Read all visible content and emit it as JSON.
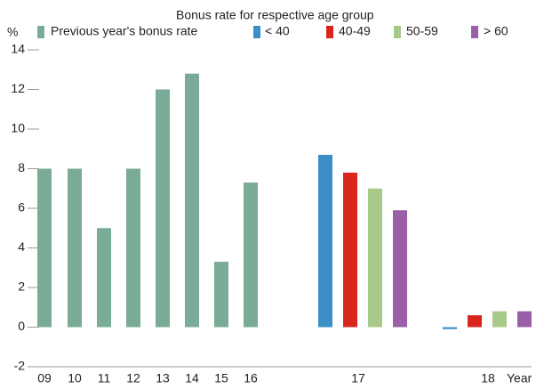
{
  "chart_data": {
    "type": "bar",
    "y_label": "%",
    "x_label": "Year",
    "legend_group_title": "Bonus rate for respective age group",
    "categories": [
      "09",
      "10",
      "11",
      "12",
      "13",
      "14",
      "15",
      "16",
      "17",
      "18"
    ],
    "series": [
      {
        "name": "Previous year's bonus rate",
        "color": "#7aab96",
        "values": [
          8,
          8,
          5,
          8,
          12,
          12.8,
          3.3,
          7.3,
          null,
          null
        ]
      },
      {
        "name": "< 40",
        "color": "#3b8fc6",
        "values": [
          null,
          null,
          null,
          null,
          null,
          null,
          null,
          null,
          8.7,
          -0.1
        ]
      },
      {
        "name": "40-49",
        "color": "#d9251c",
        "values": [
          null,
          null,
          null,
          null,
          null,
          null,
          null,
          null,
          7.8,
          0.6
        ]
      },
      {
        "name": "50-59",
        "color": "#a9c98a",
        "values": [
          null,
          null,
          null,
          null,
          null,
          null,
          null,
          null,
          7.0,
          0.8
        ]
      },
      {
        "name": "> 60",
        "color": "#9b5fa8",
        "values": [
          null,
          null,
          null,
          null,
          null,
          null,
          null,
          null,
          5.9,
          0.8
        ]
      }
    ],
    "ylim": [
      -2,
      14
    ],
    "yticks": [
      -2,
      0,
      2,
      4,
      6,
      8,
      10,
      12,
      14
    ]
  }
}
